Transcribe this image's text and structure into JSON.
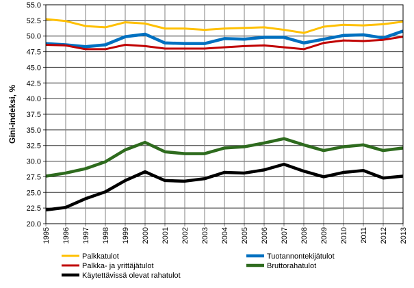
{
  "chart_data": {
    "type": "line",
    "title": "",
    "xlabel": "",
    "ylabel": "Gini-indeksi, %",
    "ylim": [
      20,
      55
    ],
    "yticks": [
      "20.0",
      "22.5",
      "25.0",
      "27.5",
      "30.0",
      "32.5",
      "35.0",
      "37.5",
      "40.0",
      "42.5",
      "45.0",
      "47.5",
      "50.0",
      "52.5",
      "55.0"
    ],
    "grid": true,
    "legend_placement": "bottom",
    "x": [
      "1995",
      "1996",
      "1997",
      "1998",
      "1999",
      "2000",
      "2001",
      "2002",
      "2003",
      "2004",
      "2005",
      "2006",
      "2007",
      "2008",
      "2009",
      "2010",
      "2011",
      "2012",
      "2013"
    ],
    "series": [
      {
        "name": "Palkkatulot",
        "color": "#FFC000",
        "values": [
          52.7,
          52.4,
          51.6,
          51.4,
          52.2,
          52.0,
          51.2,
          51.2,
          51.0,
          51.2,
          51.3,
          51.4,
          51.0,
          50.5,
          51.5,
          51.8,
          51.7,
          51.9,
          52.3
        ]
      },
      {
        "name": "Tuotannontekijätulot",
        "color": "#0070C0",
        "values": [
          48.8,
          48.6,
          48.3,
          48.6,
          49.9,
          50.3,
          48.9,
          48.8,
          48.8,
          49.6,
          49.5,
          49.8,
          49.8,
          48.9,
          49.5,
          50.1,
          50.2,
          49.7,
          50.8
        ]
      },
      {
        "name": "Palkka- ja yrittäjätulot",
        "color": "#C00000",
        "values": [
          48.6,
          48.5,
          47.9,
          47.9,
          48.6,
          48.4,
          48.0,
          48.0,
          48.0,
          48.2,
          48.4,
          48.5,
          48.2,
          47.9,
          48.9,
          49.3,
          49.2,
          49.4,
          49.9
        ]
      },
      {
        "name": "Bruttorahatulot",
        "color": "#2E6B1E",
        "values": [
          27.6,
          28.1,
          28.8,
          29.9,
          31.8,
          33.0,
          31.5,
          31.2,
          31.2,
          32.1,
          32.3,
          32.9,
          33.6,
          32.6,
          31.7,
          32.3,
          32.6,
          31.7,
          32.1
        ]
      },
      {
        "name": "Käytettävissä olevat rahatulot",
        "color": "#000000",
        "values": [
          22.2,
          22.6,
          24.0,
          25.1,
          26.9,
          28.3,
          26.9,
          26.8,
          27.2,
          28.2,
          28.1,
          28.6,
          29.5,
          28.4,
          27.5,
          28.2,
          28.5,
          27.3,
          27.6
        ]
      }
    ]
  }
}
